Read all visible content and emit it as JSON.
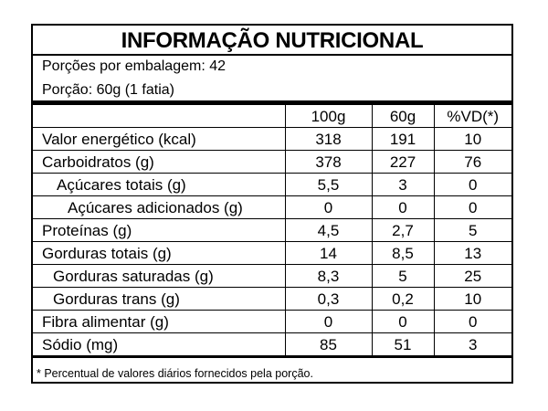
{
  "title": "INFORMAÇÃO NUTRICIONAL",
  "portions_per_package": "Porções por embalagem: 42",
  "serving": "Porção: 60g (1 fatia)",
  "columns": [
    "",
    "100g",
    "60g",
    "%VD(*)"
  ],
  "rows": [
    {
      "name": "Valor energético (kcal)",
      "v100": "318",
      "v60": "191",
      "vd": "10"
    },
    {
      "name": "Carboidratos (g)",
      "v100": "378",
      "v60": "227",
      "vd": "76"
    },
    {
      "name": "Açúcares totais (g)",
      "v100": "5,5",
      "v60": "3",
      "vd": "0"
    },
    {
      "name": "Açúcares adicionados (g)",
      "v100": "0",
      "v60": "0",
      "vd": "0"
    },
    {
      "name": "Proteínas (g)",
      "v100": "4,5",
      "v60": "2,7",
      "vd": "5"
    },
    {
      "name": "Gorduras totais (g)",
      "v100": "14",
      "v60": "8,5",
      "vd": "13"
    },
    {
      "name": "Gorduras saturadas (g)",
      "v100": "8,3",
      "v60": "5",
      "vd": "25"
    },
    {
      "name": "Gorduras trans (g)",
      "v100": "0,3",
      "v60": "0,2",
      "vd": "10"
    },
    {
      "name": "Fibra alimentar (g)",
      "v100": "0",
      "v60": "0",
      "vd": "0"
    },
    {
      "name": "Sódio (mg)",
      "v100": "85",
      "v60": "51",
      "vd": "3"
    }
  ],
  "footnote": "* Percentual de valores diários fornecidos pela porção."
}
